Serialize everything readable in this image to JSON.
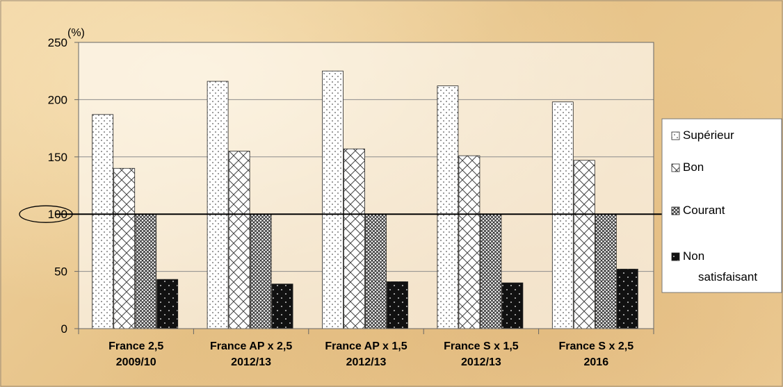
{
  "chart_data": {
    "type": "bar",
    "unit_label": "(%)",
    "categories": [
      [
        "France 2,5",
        "2009/10"
      ],
      [
        "France AP x 2,5",
        "2012/13"
      ],
      [
        "France AP x 1,5",
        "2012/13"
      ],
      [
        "France S x 1,5",
        "2012/13"
      ],
      [
        "France S x 2,5",
        "2016"
      ]
    ],
    "series": [
      {
        "name": "Supérieur",
        "values": [
          187,
          216,
          225,
          212,
          198
        ],
        "pattern": "dots"
      },
      {
        "name": "Bon",
        "values": [
          140,
          155,
          157,
          151,
          147
        ],
        "pattern": "crosshatch"
      },
      {
        "name": "Courant",
        "values": [
          100,
          100,
          100,
          100,
          100
        ],
        "pattern": "dense-check"
      },
      {
        "name": [
          "Non",
          "satisfaisant"
        ],
        "values": [
          43,
          39,
          41,
          40,
          52
        ],
        "pattern": "black-dots"
      }
    ],
    "ylim": [
      0,
      250
    ],
    "yticks": [
      0,
      50,
      100,
      150,
      200,
      250
    ],
    "reference_line": 100,
    "highlighted_tick": 100,
    "grid": true,
    "legend_position": "right"
  }
}
